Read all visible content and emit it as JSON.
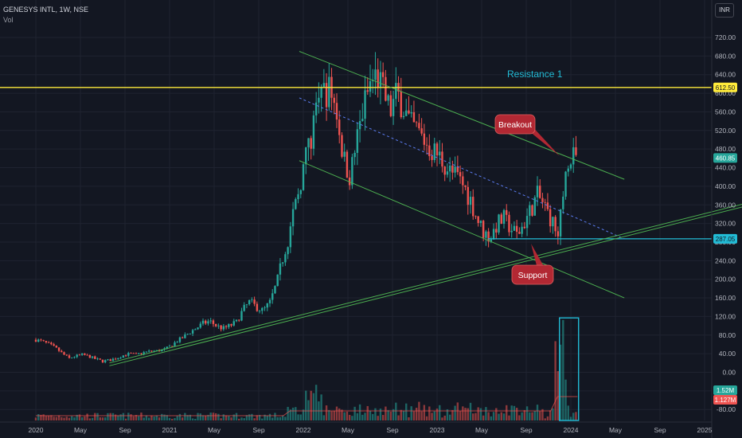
{
  "legend": {
    "symbol": "GENESYS INTL, 1W, NSE",
    "volume": "Vol"
  },
  "currency": "INR",
  "colors": {
    "up": "#26a69a",
    "down": "#ef5350",
    "background": "#131722",
    "trendline": "#4caf50",
    "resistance": "#ffeb3b",
    "support_line": "#22bcd6",
    "callout": "#b22833"
  },
  "chart_data": {
    "type": "candlestick",
    "price_axis": {
      "ticks": [
        "720.00",
        "680.00",
        "640.00",
        "600.00",
        "560.00",
        "520.00",
        "480.00",
        "440.00",
        "400.00",
        "360.00",
        "320.00",
        "280.00",
        "240.00",
        "200.00",
        "160.00",
        "120.00",
        "80.00",
        "40.00",
        "0.00",
        "-40.00",
        "-80.00"
      ]
    },
    "time_axis": {
      "labels": [
        "2020",
        "May",
        "Sep",
        "2021",
        "May",
        "Sep",
        "2022",
        "May",
        "Sep",
        "2023",
        "May",
        "Sep",
        "2024",
        "May",
        "Sep",
        "2025"
      ]
    },
    "price_tags": {
      "resistance": "612.50",
      "last": "460.85",
      "support": "287.05",
      "volume_a": "1.52M",
      "volume_b": "1.127M"
    },
    "annotations": {
      "resistance_label": "Resistance 1",
      "breakout": "Breakout",
      "support": "Support"
    },
    "price_path": [
      [
        2020.0,
        70
      ],
      [
        2020.05,
        66
      ],
      [
        2020.1,
        60
      ],
      [
        2020.15,
        52
      ],
      [
        2020.2,
        40
      ],
      [
        2020.25,
        30
      ],
      [
        2020.3,
        35
      ],
      [
        2020.35,
        38
      ],
      [
        2020.4,
        34
      ],
      [
        2020.45,
        28
      ],
      [
        2020.5,
        24
      ],
      [
        2020.55,
        26
      ],
      [
        2020.6,
        30
      ],
      [
        2020.65,
        36
      ],
      [
        2020.7,
        40
      ],
      [
        2020.75,
        38
      ],
      [
        2020.8,
        42
      ],
      [
        2020.85,
        45
      ],
      [
        2020.9,
        46
      ],
      [
        2020.95,
        48
      ],
      [
        2021.0,
        55
      ],
      [
        2021.05,
        66
      ],
      [
        2021.1,
        75
      ],
      [
        2021.15,
        86
      ],
      [
        2021.2,
        95
      ],
      [
        2021.25,
        105
      ],
      [
        2021.3,
        110
      ],
      [
        2021.35,
        100
      ],
      [
        2021.4,
        94
      ],
      [
        2021.45,
        100
      ],
      [
        2021.5,
        108
      ],
      [
        2021.55,
        135
      ],
      [
        2021.6,
        152
      ],
      [
        2021.65,
        140
      ],
      [
        2021.7,
        132
      ],
      [
        2021.75,
        150
      ],
      [
        2021.8,
        190
      ],
      [
        2021.85,
        250
      ],
      [
        2021.9,
        300
      ],
      [
        2021.95,
        370
      ],
      [
        2022.0,
        440
      ],
      [
        2022.05,
        500
      ],
      [
        2022.1,
        560
      ],
      [
        2022.15,
        600
      ],
      [
        2022.2,
        610
      ],
      [
        2022.25,
        560
      ],
      [
        2022.3,
        460
      ],
      [
        2022.35,
        420
      ],
      [
        2022.4,
        500
      ],
      [
        2022.45,
        570
      ],
      [
        2022.5,
        620
      ],
      [
        2022.55,
        640
      ],
      [
        2022.6,
        600
      ],
      [
        2022.65,
        560
      ],
      [
        2022.7,
        600
      ],
      [
        2022.75,
        570
      ],
      [
        2022.8,
        530
      ],
      [
        2022.85,
        520
      ],
      [
        2022.9,
        500
      ],
      [
        2022.95,
        480
      ],
      [
        2023.0,
        470
      ],
      [
        2023.05,
        450
      ],
      [
        2023.1,
        430
      ],
      [
        2023.15,
        420
      ],
      [
        2023.2,
        400
      ],
      [
        2023.25,
        370
      ],
      [
        2023.3,
        330
      ],
      [
        2023.35,
        300
      ],
      [
        2023.4,
        290
      ],
      [
        2023.45,
        320
      ],
      [
        2023.5,
        330
      ],
      [
        2023.55,
        310
      ],
      [
        2023.6,
        295
      ],
      [
        2023.65,
        320
      ],
      [
        2023.7,
        350
      ],
      [
        2023.75,
        380
      ],
      [
        2023.8,
        360
      ],
      [
        2023.85,
        330
      ],
      [
        2023.9,
        300
      ],
      [
        2023.95,
        400
      ],
      [
        2024.0,
        455
      ],
      [
        2024.02,
        461
      ]
    ]
  }
}
